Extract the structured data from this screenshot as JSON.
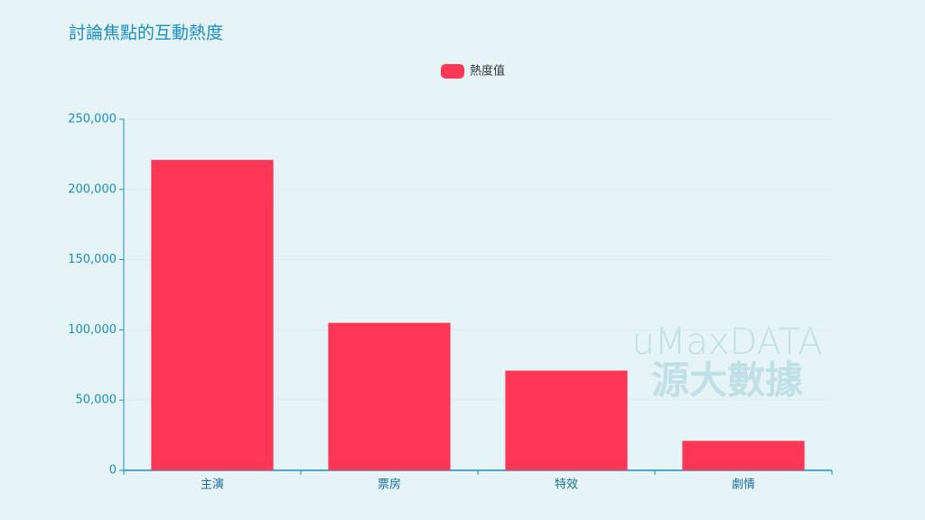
{
  "chart_data": {
    "type": "bar",
    "title": "討論焦點的互動熱度",
    "legend": "熱度值",
    "categories": [
      "主演",
      "票房",
      "特效",
      "劇情"
    ],
    "values": [
      221000,
      105000,
      71000,
      21000
    ],
    "color": "#ff3757",
    "ylim": [
      0,
      250000
    ],
    "yticks": [
      0,
      {
        "value": 50000,
        "label": "50,000"
      },
      {
        "value": 100000,
        "label": "100,000"
      },
      {
        "value": 150000,
        "label": "150,000"
      },
      {
        "value": 200000,
        "label": "200,000"
      },
      {
        "value": 250000,
        "label": "250,000"
      }
    ],
    "grid": true,
    "watermark": [
      "uMaxDATA",
      "源大數據"
    ]
  }
}
